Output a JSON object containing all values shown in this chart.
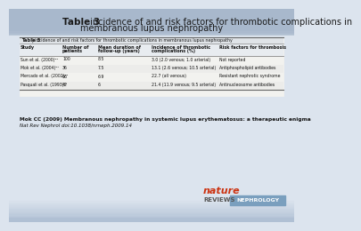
{
  "title_bold": "Table 3",
  "title_line1_rest": " incidence of and risk factors for thrombotic complications in",
  "title_line2": "membranous lupus nephropathy",
  "table_caption": "Table 3 | incidence of and risk factors for thrombotic complications in membranous lupus nephropathy",
  "col_headers": [
    "Study",
    "Number of\npatients",
    "Mean duration of\nfollow-up (years)",
    "Incidence of thrombotic\ncomplications (%)",
    "Risk factors for thrombosis"
  ],
  "rows": [
    [
      "Sun et al. (2000)²⁰",
      "100",
      "8.5",
      "3.0 (2.0 venous; 1.0 arterial)",
      "Not reported"
    ],
    [
      "Mok et al. (2004)²¹",
      "36",
      "7.5",
      "13.1 (2.6 venous; 10.5 arterial)",
      "Antiphospholipid antibodies"
    ],
    [
      "Mercado et al. (2002)²²",
      "66",
      "6.9",
      "22.7 (all venous)",
      "Resistant nephrotic syndrome"
    ],
    [
      "Pasquali et al. (1993)²³",
      "42",
      "6",
      "21.4 (11.9 venous; 9.5 arterial)",
      "Antinucleosome antibodies"
    ]
  ],
  "footnote_bold": "Mok CC (2009) Membranous nephropathy in systemic lupus erythematosus: a therapeutic enigma",
  "footnote_italic": "Nat Rev Nephrol doi:10.1038/nrneph.2009.14",
  "bg_top_color": "#a8b8cc",
  "bg_mid_color": "#dce4ee",
  "bg_bot_color": "#b0c0d4",
  "table_bg": "#f2f2ef",
  "table_caption_bg": "#e0e4e8",
  "table_header_bg": "#e8ecf0",
  "row_alt_bg": "#ececea",
  "border_color": "#999999",
  "nature_red": "#cc3311",
  "reviews_color": "#555555",
  "nephrology_bg": "#7a9fbe",
  "nephrology_text": "#ffffff"
}
